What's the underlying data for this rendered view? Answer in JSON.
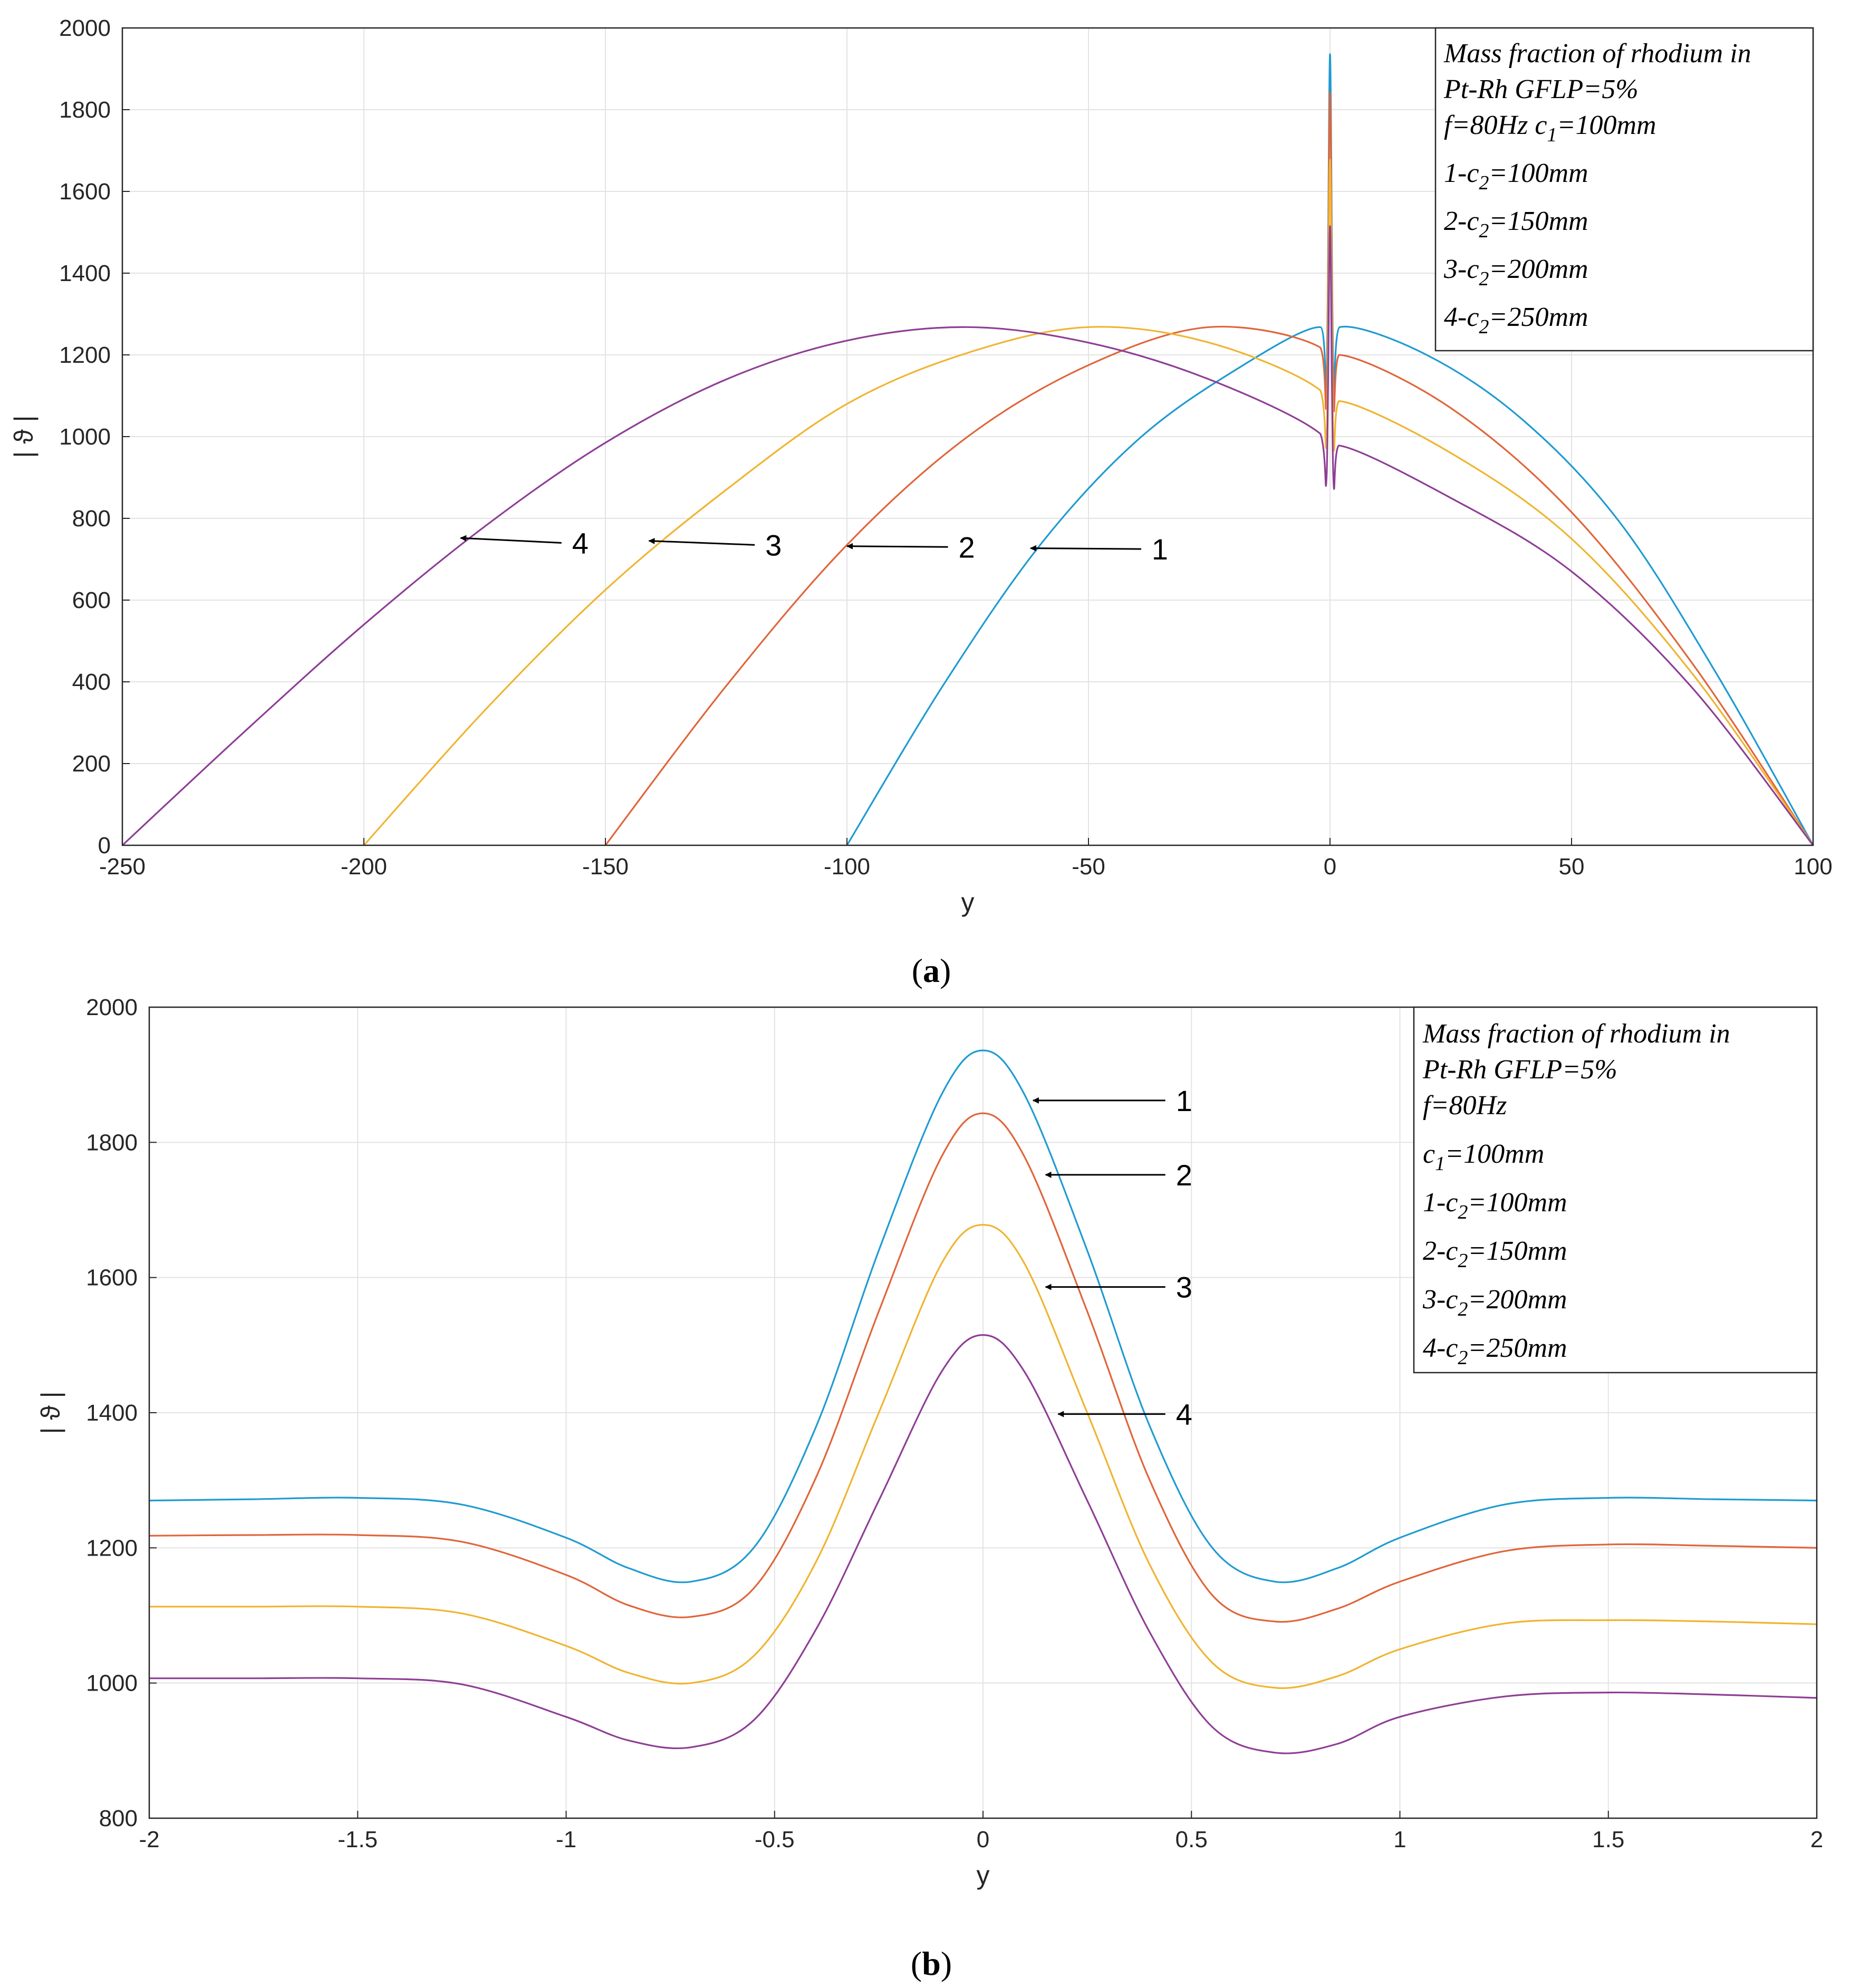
{
  "colors": [
    "#1f9bd1",
    "#e0653a",
    "#f0b430",
    "#8e3e95"
  ],
  "chart_data": [
    {
      "type": "line",
      "panel": "a",
      "caption_letter": "a",
      "xlabel": "y",
      "ylabel": "| ϑ |",
      "xlim": [
        -250,
        100
      ],
      "ylim": [
        0,
        2000
      ],
      "xticks": [
        -250,
        -200,
        -150,
        -100,
        -50,
        0,
        50,
        100
      ],
      "yticks": [
        0,
        200,
        400,
        600,
        800,
        1000,
        1200,
        1400,
        1600,
        1800,
        2000
      ],
      "grid": true,
      "legend_position": "top-right",
      "legend": [
        {
          "segments": [
            {
              "text": "Mass fraction of rhodium in"
            }
          ]
        },
        {
          "segments": [
            {
              "text": "Pt-Rh GFLP=5%"
            }
          ]
        },
        {
          "segments": [
            {
              "text": "f=80Hz  c"
            },
            {
              "text": "1",
              "sub": true
            },
            {
              "text": "=100mm"
            }
          ]
        },
        {
          "segments": [
            {
              "text": "1-c"
            },
            {
              "text": "2",
              "sub": true
            },
            {
              "text": "=100mm"
            }
          ]
        },
        {
          "segments": [
            {
              "text": "2-c"
            },
            {
              "text": "2",
              "sub": true
            },
            {
              "text": "=150mm"
            }
          ]
        },
        {
          "segments": [
            {
              "text": "3-c"
            },
            {
              "text": "2",
              "sub": true
            },
            {
              "text": "=200mm"
            }
          ]
        },
        {
          "segments": [
            {
              "text": "4-c"
            },
            {
              "text": "2",
              "sub": true
            },
            {
              "text": "=250mm"
            }
          ]
        }
      ],
      "annotations": [
        {
          "label": "1",
          "text_at": [
            -38,
            725
          ],
          "arrow_to": [
            -62,
            727
          ]
        },
        {
          "label": "2",
          "text_at": [
            -78,
            730
          ],
          "arrow_to": [
            -100,
            732
          ]
        },
        {
          "label": "3",
          "text_at": [
            -118,
            735
          ],
          "arrow_to": [
            -141,
            745
          ]
        },
        {
          "label": "4",
          "text_at": [
            -158,
            740
          ],
          "arrow_to": [
            -180,
            752
          ]
        }
      ],
      "series": [
        {
          "name": "1-c2=100mm",
          "c2": 100,
          "x": [
            -100,
            -80,
            -60,
            -40,
            -20,
            -2,
            -0.7,
            0,
            0.7,
            2,
            20,
            40,
            60,
            80,
            100
          ],
          "y": [
            0,
            393,
            735,
            990,
            1160,
            1268,
            1150,
            1936,
            1150,
            1268,
            1200,
            1040,
            790,
            420,
            0
          ]
        },
        {
          "name": "2-c2=150mm",
          "c2": 150,
          "x": [
            -150,
            -125,
            -100,
            -75,
            -50,
            -25,
            -2,
            -0.7,
            0,
            0.7,
            2,
            25,
            50,
            75,
            100
          ],
          "y": [
            0,
            390,
            735,
            1000,
            1175,
            1268,
            1218,
            1098,
            1843,
            1091,
            1200,
            1070,
            815,
            445,
            0
          ]
        },
        {
          "name": "3-c2=200mm",
          "c2": 200,
          "x": [
            -200,
            -175,
            -150,
            -125,
            -100,
            -75,
            -50,
            -25,
            -2,
            -0.7,
            0,
            0.7,
            2,
            25,
            50,
            75,
            100
          ],
          "y": [
            0,
            330,
            625,
            870,
            1080,
            1205,
            1268,
            1230,
            1113,
            1000,
            1678,
            993,
            1087,
            960,
            750,
            420,
            0
          ]
        },
        {
          "name": "4-c2=250mm",
          "c2": 250,
          "x": [
            -250,
            -225,
            -200,
            -175,
            -150,
            -125,
            -100,
            -75,
            -50,
            -25,
            -2,
            -0.7,
            0,
            0.7,
            2,
            25,
            50,
            75,
            100
          ],
          "y": [
            0,
            275,
            540,
            780,
            985,
            1140,
            1235,
            1268,
            1230,
            1140,
            1007,
            905,
            1515,
            897,
            978,
            850,
            670,
            385,
            0
          ]
        }
      ]
    },
    {
      "type": "line",
      "panel": "b",
      "caption_letter": "b",
      "xlabel": "y",
      "ylabel": "| ϑ |",
      "xlim": [
        -2,
        2
      ],
      "ylim": [
        800,
        2000
      ],
      "xticks": [
        -2,
        -1.5,
        -1,
        -0.5,
        0,
        0.5,
        1,
        1.5,
        2
      ],
      "yticks": [
        800,
        1000,
        1200,
        1400,
        1600,
        1800,
        2000
      ],
      "grid": true,
      "legend_position": "top-right",
      "legend": [
        {
          "segments": [
            {
              "text": "Mass fraction of rhodium in"
            }
          ]
        },
        {
          "segments": [
            {
              "text": "Pt-Rh GFLP=5%"
            }
          ]
        },
        {
          "segments": [
            {
              "text": "f=80Hz"
            }
          ]
        },
        {
          "segments": [
            {
              "text": "c"
            },
            {
              "text": "1",
              "sub": true
            },
            {
              "text": "=100mm"
            }
          ]
        },
        {
          "segments": [
            {
              "text": "1-c"
            },
            {
              "text": "2",
              "sub": true
            },
            {
              "text": "=100mm"
            }
          ]
        },
        {
          "segments": [
            {
              "text": "2-c"
            },
            {
              "text": "2",
              "sub": true
            },
            {
              "text": "=150mm"
            }
          ]
        },
        {
          "segments": [
            {
              "text": "3-c"
            },
            {
              "text": "2",
              "sub": true
            },
            {
              "text": "=200mm"
            }
          ]
        },
        {
          "segments": [
            {
              "text": "4-c"
            },
            {
              "text": "2",
              "sub": true
            },
            {
              "text": "=250mm"
            }
          ]
        }
      ],
      "annotations": [
        {
          "label": "1",
          "text_at": [
            0.45,
            1862
          ],
          "arrow_to": [
            0.12,
            1862
          ]
        },
        {
          "label": "2",
          "text_at": [
            0.45,
            1752
          ],
          "arrow_to": [
            0.15,
            1752
          ]
        },
        {
          "label": "3",
          "text_at": [
            0.45,
            1586
          ],
          "arrow_to": [
            0.15,
            1586
          ]
        },
        {
          "label": "4",
          "text_at": [
            0.45,
            1398
          ],
          "arrow_to": [
            0.18,
            1398
          ]
        }
      ],
      "series": [
        {
          "name": "1-c2=100mm",
          "c2": 100,
          "x": [
            -2,
            -1.75,
            -1.5,
            -1.25,
            -1,
            -0.85,
            -0.7,
            -0.55,
            -0.4,
            -0.25,
            -0.1,
            0,
            0.1,
            0.25,
            0.4,
            0.55,
            0.7,
            0.85,
            1,
            1.25,
            1.5,
            1.75,
            2
          ],
          "y": [
            1270,
            1272,
            1274,
            1264,
            1215,
            1170,
            1150,
            1200,
            1380,
            1640,
            1870,
            1936,
            1870,
            1640,
            1380,
            1200,
            1150,
            1170,
            1215,
            1264,
            1274,
            1272,
            1270
          ]
        },
        {
          "name": "2-c2=150mm",
          "c2": 150,
          "x": [
            -2,
            -1.75,
            -1.5,
            -1.25,
            -1,
            -0.85,
            -0.7,
            -0.55,
            -0.4,
            -0.25,
            -0.1,
            0,
            0.1,
            0.25,
            0.4,
            0.55,
            0.7,
            0.85,
            1,
            1.25,
            1.5,
            1.75,
            2
          ],
          "y": [
            1218,
            1219,
            1219,
            1209,
            1160,
            1115,
            1098,
            1140,
            1305,
            1550,
            1778,
            1843,
            1778,
            1550,
            1300,
            1130,
            1091,
            1110,
            1150,
            1195,
            1205,
            1203,
            1200
          ]
        },
        {
          "name": "3-c2=200mm",
          "c2": 200,
          "x": [
            -2,
            -1.75,
            -1.5,
            -1.25,
            -1,
            -0.85,
            -0.7,
            -0.55,
            -0.4,
            -0.25,
            -0.1,
            0,
            0.1,
            0.25,
            0.4,
            0.55,
            0.7,
            0.85,
            1,
            1.25,
            1.5,
            1.75,
            2
          ],
          "y": [
            1113,
            1113,
            1113,
            1103,
            1055,
            1015,
            1000,
            1040,
            1180,
            1400,
            1620,
            1678,
            1620,
            1400,
            1175,
            1030,
            993,
            1010,
            1050,
            1088,
            1093,
            1091,
            1087
          ]
        },
        {
          "name": "4-c2=250mm",
          "c2": 250,
          "x": [
            -2,
            -1.75,
            -1.5,
            -1.25,
            -1,
            -0.85,
            -0.7,
            -0.55,
            -0.4,
            -0.25,
            -0.1,
            0,
            0.1,
            0.25,
            0.4,
            0.55,
            0.7,
            0.85,
            1,
            1.25,
            1.5,
            1.75,
            2
          ],
          "y": [
            1007,
            1007,
            1007,
            998,
            950,
            915,
            905,
            945,
            1080,
            1270,
            1460,
            1515,
            1460,
            1270,
            1075,
            935,
            897,
            910,
            950,
            980,
            986,
            983,
            978
          ]
        }
      ]
    }
  ]
}
